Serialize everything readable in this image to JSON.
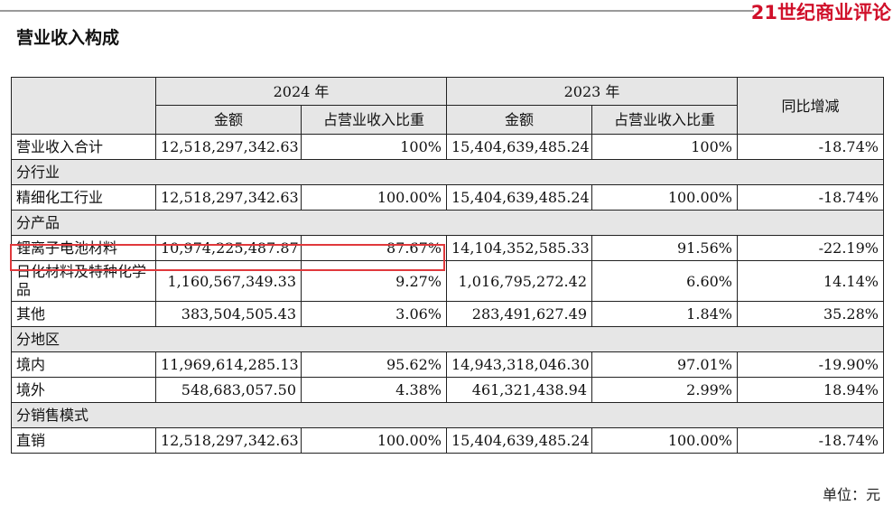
{
  "brand": "21世纪商业评论",
  "title": "营业收入构成",
  "header": {
    "year_2024": "2024 年",
    "year_2023": "2023 年",
    "amount": "金额",
    "share": "占营业收入比重",
    "yoy": "同比增减"
  },
  "total": {
    "label": "营业收入合计",
    "a24": "12,518,297,342.63",
    "p24": "100%",
    "a23": "15,404,639,485.24",
    "p23": "100%",
    "yoy": "-18.74%"
  },
  "sections": {
    "industry": {
      "title": "分行业",
      "rows": [
        {
          "label": "精细化工行业",
          "a24": "12,518,297,342.63",
          "p24": "100.00%",
          "a23": "15,404,639,485.24",
          "p23": "100.00%",
          "yoy": "-18.74%"
        }
      ]
    },
    "product": {
      "title": "分产品",
      "rows": [
        {
          "label": "锂离子电池材料",
          "a24": "10,974,225,487.87",
          "p24": "87.67%",
          "a23": "14,104,352,585.33",
          "p23": "91.56%",
          "yoy": "-22.19%"
        },
        {
          "label": "日化材料及特种化学品",
          "a24": "1,160,567,349.33",
          "p24": "9.27%",
          "a23": "1,016,795,272.42",
          "p23": "6.60%",
          "yoy": "14.14%"
        },
        {
          "label": "其他",
          "a24": "383,504,505.43",
          "p24": "3.06%",
          "a23": "283,491,627.49",
          "p23": "1.84%",
          "yoy": "35.28%"
        }
      ]
    },
    "region": {
      "title": "分地区",
      "rows": [
        {
          "label": "境内",
          "a24": "11,969,614,285.13",
          "p24": "95.62%",
          "a23": "14,943,318,046.30",
          "p23": "97.01%",
          "yoy": "-19.90%"
        },
        {
          "label": "境外",
          "a24": "548,683,057.50",
          "p24": "4.38%",
          "a23": "461,321,438.94",
          "p23": "2.99%",
          "yoy": "18.94%"
        }
      ]
    },
    "sales": {
      "title": "分销售模式",
      "rows": [
        {
          "label": "直销",
          "a24": "12,518,297,342.63",
          "p24": "100.00%",
          "a23": "15,404,639,485.24",
          "p23": "100.00%",
          "yoy": "-18.74%"
        }
      ]
    }
  },
  "unit": "单位：元",
  "colors": {
    "highlight": "#e0393c",
    "brand": "#d0102a",
    "header_bg": "#e6e6e6"
  }
}
